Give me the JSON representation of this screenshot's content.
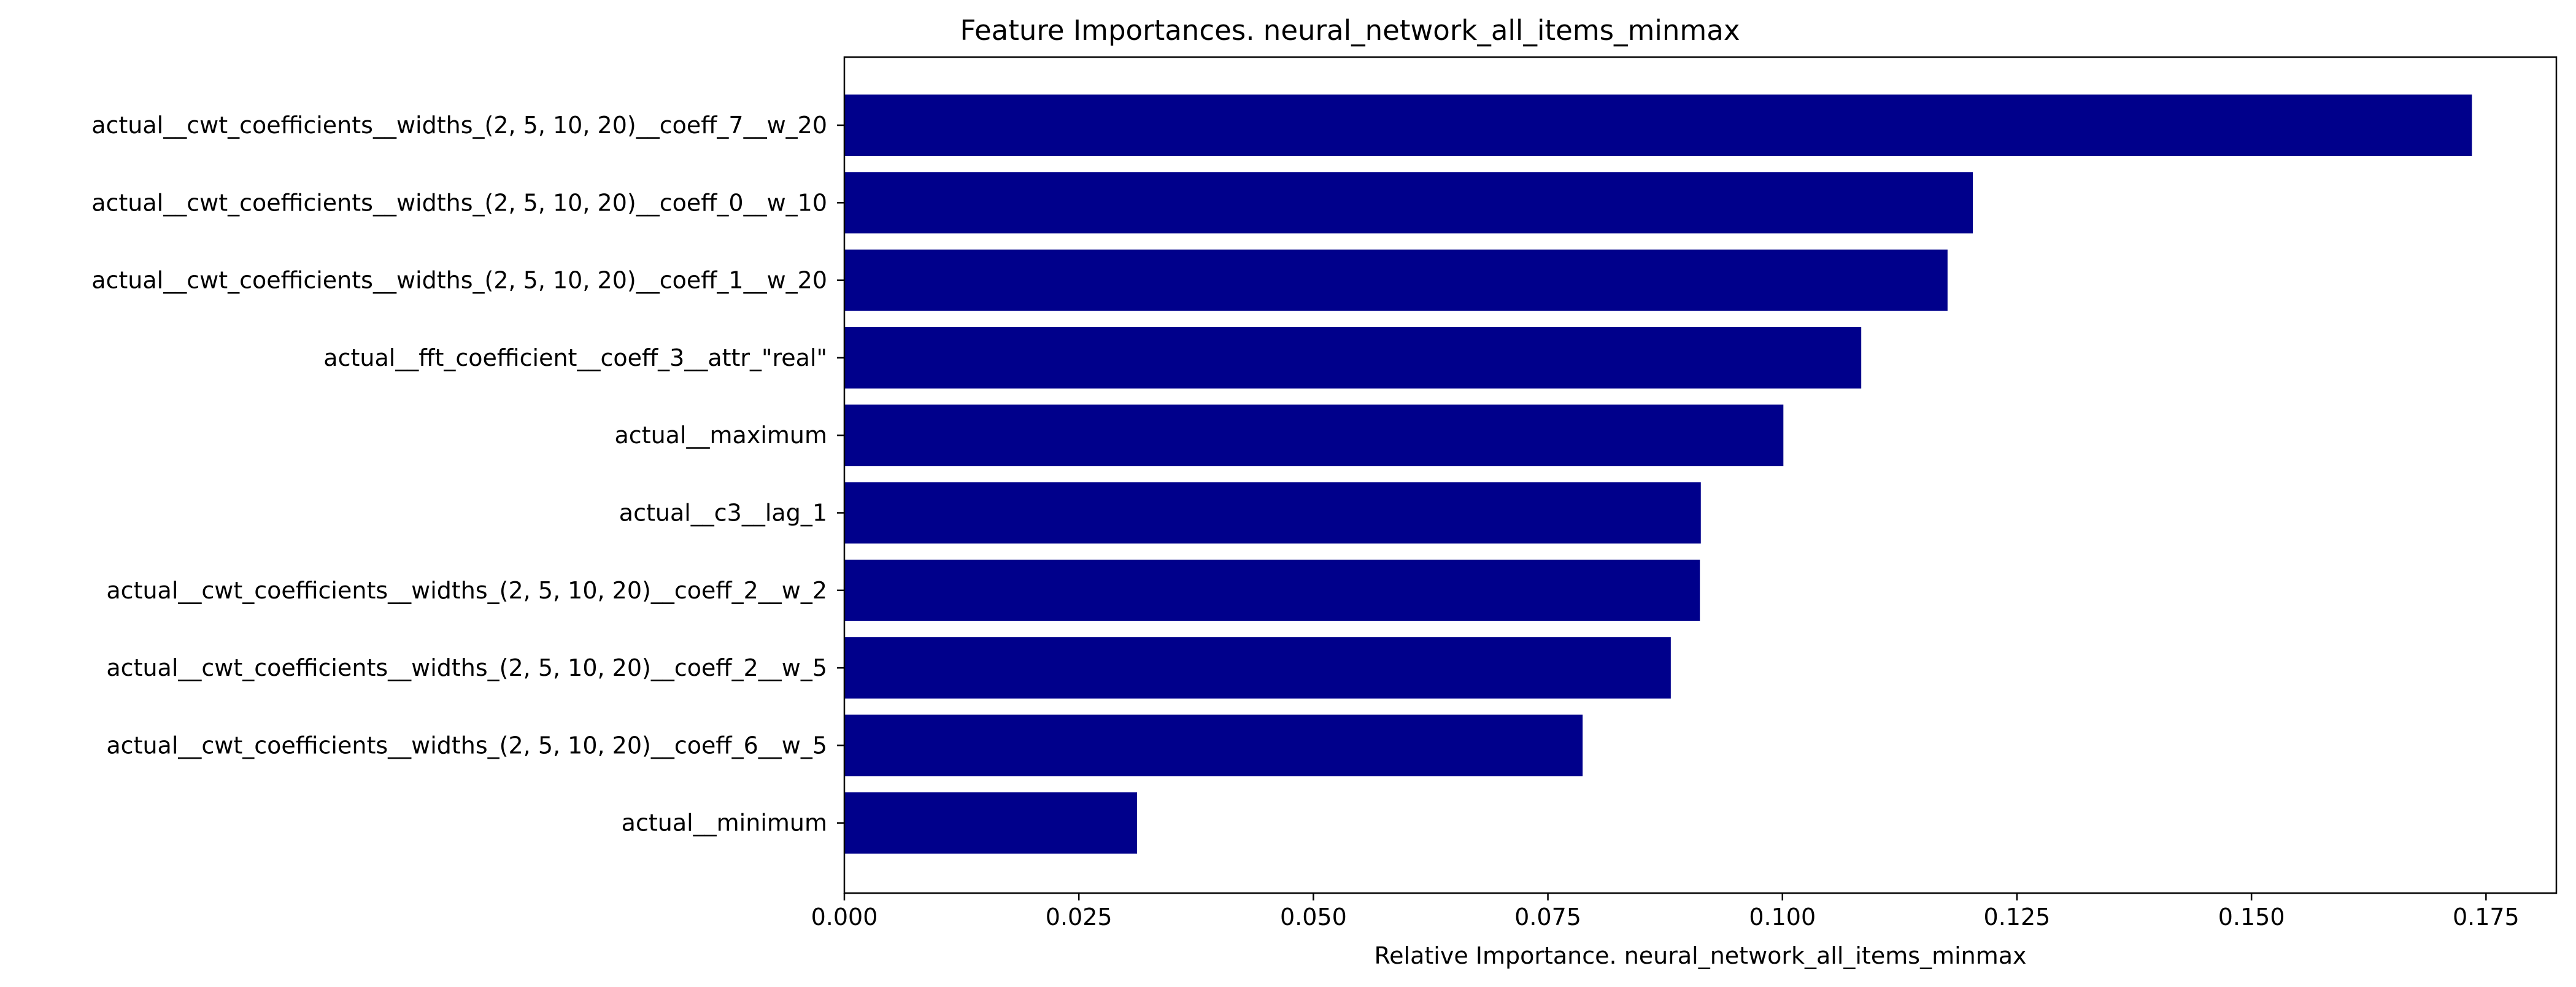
{
  "chart_data": {
    "type": "bar",
    "orientation": "horizontal",
    "title": "Feature Importances. neural_network_all_items_minmax",
    "xlabel": "Relative Importance. neural_network_all_items_minmax",
    "ylabel": "",
    "xlim": [
      0,
      0.1825
    ],
    "xticks": [
      "0.000",
      "0.025",
      "0.050",
      "0.075",
      "0.100",
      "0.125",
      "0.150",
      "0.175"
    ],
    "bar_color": "#00008b",
    "grid": false,
    "categories": [
      "actual__cwt_coefficients__widths_(2, 5, 10, 20)__coeff_7__w_20",
      "actual__cwt_coefficients__widths_(2, 5, 10, 20)__coeff_0__w_10",
      "actual__cwt_coefficients__widths_(2, 5, 10, 20)__coeff_1__w_20",
      "actual__fft_coefficient__coeff_3__attr_\"real\"",
      "actual__maximum",
      "actual__c3__lag_1",
      "actual__cwt_coefficients__widths_(2, 5, 10, 20)__coeff_2__w_2",
      "actual__cwt_coefficients__widths_(2, 5, 10, 20)__coeff_2__w_5",
      "actual__cwt_coefficients__widths_(2, 5, 10, 20)__coeff_6__w_5",
      "actual__minimum"
    ],
    "values": [
      0.1735,
      0.1203,
      0.1176,
      0.1084,
      0.1001,
      0.0913,
      0.0912,
      0.0881,
      0.0787,
      0.0312
    ]
  }
}
